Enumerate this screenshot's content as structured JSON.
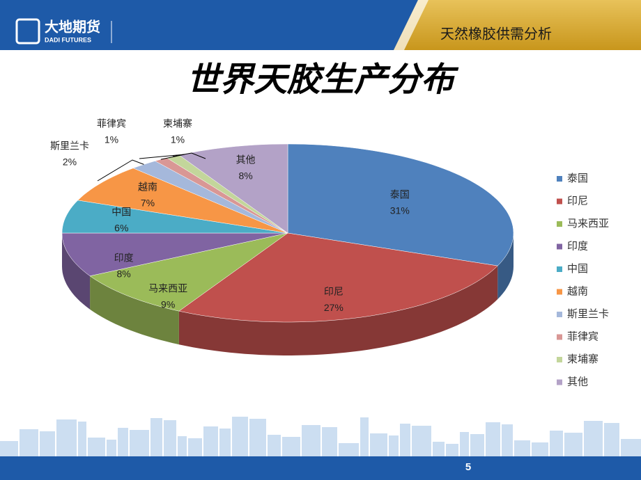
{
  "header": {
    "logo": "大地期货",
    "logo_sub": "DADI FUTURES",
    "section": "天然橡胶供需分析"
  },
  "chart_data": {
    "type": "pie3d",
    "title": "世界天胶生产分布",
    "categories": [
      "泰国",
      "印尼",
      "马来西亚",
      "印度",
      "中国",
      "越南",
      "斯里兰卡",
      "菲律宾",
      "柬埔寨",
      "其他"
    ],
    "values": [
      31,
      27,
      9,
      8,
      6,
      7,
      2,
      1,
      1,
      8
    ],
    "value_labels": [
      "31%",
      "27%",
      "9%",
      "8%",
      "6%",
      "7%",
      "2%",
      "1%",
      "1%",
      "8%"
    ],
    "colors": [
      "#4f81bd",
      "#c0504d",
      "#9bbb59",
      "#8064a2",
      "#4bacc6",
      "#f79646",
      "#a5b8db",
      "#d99795",
      "#c3d69b",
      "#b3a2c7"
    ],
    "legend": "right"
  },
  "page_number": "5"
}
